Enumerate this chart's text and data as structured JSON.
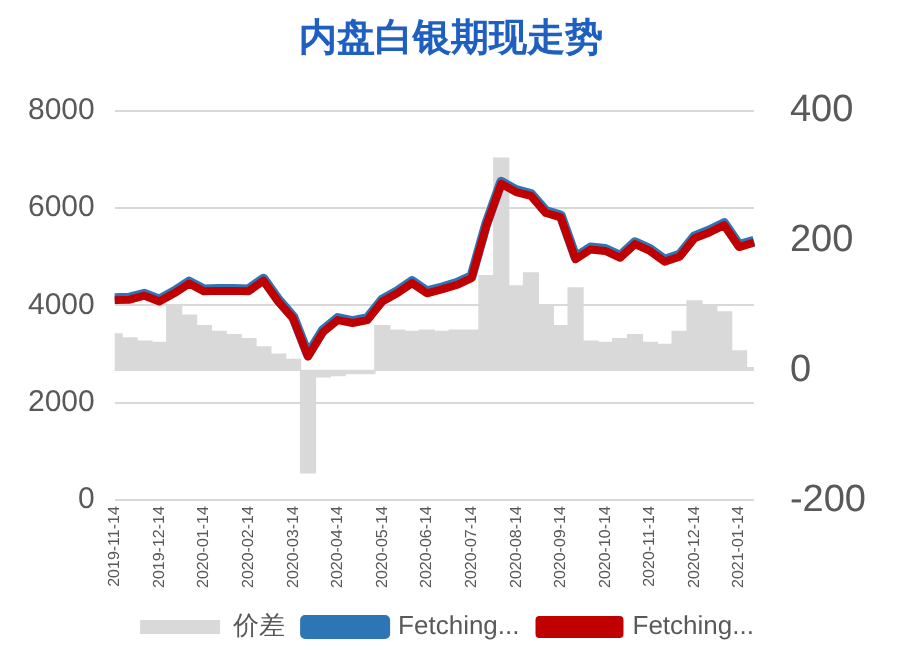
{
  "chart_data": {
    "type": "line",
    "title": "内盘白银期现走势",
    "categories": [
      "2019-11-14",
      null,
      null,
      "2019-12-14",
      null,
      null,
      "2020-01-14",
      null,
      null,
      "2020-02-14",
      null,
      null,
      "2020-03-14",
      null,
      null,
      "2020-04-14",
      null,
      null,
      "2020-05-14",
      null,
      null,
      "2020-06-14",
      null,
      null,
      "2020-07-14",
      null,
      null,
      "2020-08-14",
      null,
      null,
      "2020-09-14",
      null,
      null,
      "2020-10-14",
      null,
      null,
      "2020-11-14",
      null,
      null,
      "2020-12-14",
      null,
      null,
      "2021-01-14",
      null
    ],
    "series": [
      {
        "name": "价差",
        "type": "bar",
        "axis": "y2",
        "color": "#d9d9d9",
        "values": [
          56,
          50,
          45,
          43,
          100,
          85,
          69,
          60,
          55,
          49,
          36,
          25,
          17,
          -158,
          -10,
          -8,
          -5,
          -5,
          69,
          62,
          60,
          62,
          60,
          62,
          62,
          146,
          327,
          130,
          150,
          100,
          69,
          127,
          45,
          43,
          49,
          55,
          43,
          40,
          60,
          107,
          100,
          90,
          30,
          4
        ]
      },
      {
        "name": "Fetching...",
        "color": "#2e75b6",
        "values": [
          4150,
          4160,
          4240,
          4120,
          4290,
          4490,
          4330,
          4340,
          4340,
          4330,
          4550,
          4120,
          3770,
          2990,
          3490,
          3740,
          3680,
          3740,
          4120,
          4290,
          4500,
          4290,
          4370,
          4460,
          4600,
          5680,
          6540,
          6370,
          6290,
          5940,
          5850,
          4990,
          5190,
          5160,
          5020,
          5300,
          5160,
          4940,
          5040,
          5420,
          5540,
          5690,
          5240,
          5330
        ]
      },
      {
        "name": "Fetching...",
        "color": "#c00000",
        "values": [
          4110,
          4120,
          4200,
          4080,
          4250,
          4450,
          4290,
          4300,
          4300,
          4290,
          4510,
          4080,
          3730,
          2950,
          3450,
          3700,
          3640,
          3700,
          4080,
          4250,
          4460,
          4250,
          4330,
          4420,
          4560,
          5640,
          6500,
          6330,
          6250,
          5900,
          5810,
          4950,
          5150,
          5120,
          4980,
          5260,
          5120,
          4900,
          5000,
          5380,
          5500,
          5650,
          5200,
          5290
        ]
      }
    ],
    "ylim": [
      0,
      8000
    ],
    "yticks": [
      0,
      2000,
      4000,
      6000,
      8000
    ],
    "y2lim": [
      -200,
      400
    ],
    "y2ticks": [
      -200,
      0,
      200,
      400
    ],
    "grid": "y",
    "legend": "bottom",
    "marker": "none"
  }
}
